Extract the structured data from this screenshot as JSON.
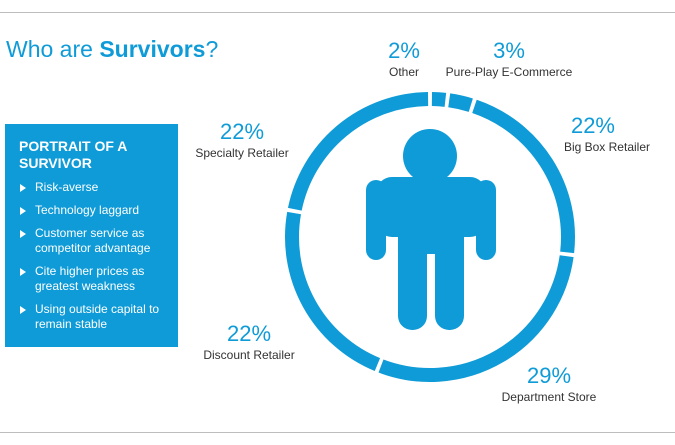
{
  "title": {
    "prefix": "Who are ",
    "emphasis": "Survivors",
    "suffix": "?"
  },
  "portrait": {
    "heading": "PORTRAIT OF A SURVIVOR",
    "items": [
      "Risk-averse",
      "Technology laggard",
      "Customer service as competitor advantage",
      "Cite higher prices as greatest weakness",
      "Using outside capital to remain stable"
    ]
  },
  "colors": {
    "accent": "#0f9bd7",
    "text": "#333333",
    "rule": "#bdbdbd"
  },
  "icons": {
    "center": "person-icon",
    "bullets": "triangle-right-icon"
  },
  "chart_data": {
    "type": "pie",
    "style": "ring",
    "title": "Who are Survivors?",
    "unit": "%",
    "categories": [
      "Other",
      "Pure-Play E-Commerce",
      "Big Box Retailer",
      "Department Store",
      "Discount Retailer",
      "Specialty Retailer"
    ],
    "values": [
      2,
      3,
      22,
      29,
      22,
      22
    ],
    "labels": [
      "2%",
      "3%",
      "22%",
      "29%",
      "22%",
      "22%"
    ]
  }
}
